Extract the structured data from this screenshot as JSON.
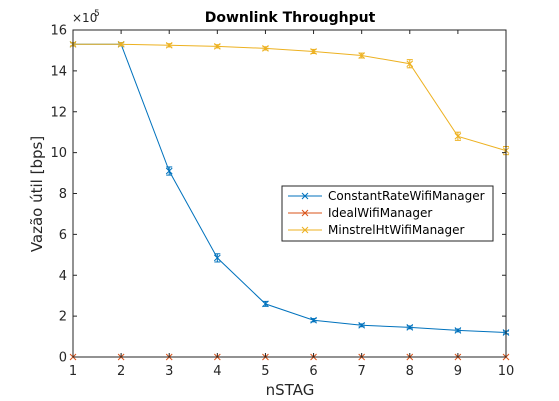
{
  "chart_data": {
    "type": "line",
    "title": "Downlink Throughput",
    "xlabel": "nSTAG",
    "ylabel": "Vazão útil [bps]",
    "y_multiplier_base": "×10",
    "y_multiplier_exp": "5",
    "x": [
      1,
      2,
      3,
      4,
      5,
      6,
      7,
      8,
      9,
      10
    ],
    "x_tick_labels": [
      "1",
      "2",
      "3",
      "4",
      "5",
      "6",
      "7",
      "8",
      "9",
      "10"
    ],
    "y_tick_labels": [
      "0",
      "2",
      "4",
      "6",
      "8",
      "10",
      "12",
      "14",
      "16"
    ],
    "xlim": [
      1,
      10
    ],
    "ylim": [
      0,
      16
    ],
    "grid": false,
    "legend_position": "center-right",
    "series": [
      {
        "name": "ConstantRateWifiManager",
        "color": "#0072BD",
        "marker": "x",
        "values": [
          15.3,
          15.3,
          9.1,
          4.85,
          2.6,
          1.8,
          1.55,
          1.45,
          1.3,
          1.2
        ],
        "errors": [
          0.08,
          0.08,
          0.2,
          0.2,
          0.12,
          0.08,
          0.07,
          0.07,
          0.07,
          0.07
        ]
      },
      {
        "name": "IdealWifiManager",
        "color": "#D95319",
        "marker": "x",
        "values": [
          0,
          0,
          0,
          0,
          0,
          0,
          0,
          0,
          0,
          0
        ],
        "errors": [
          0,
          0,
          0,
          0,
          0,
          0,
          0,
          0,
          0,
          0
        ]
      },
      {
        "name": "MinstrelHtWifiManager",
        "color": "#EDB120",
        "marker": "x",
        "values": [
          15.3,
          15.3,
          15.25,
          15.2,
          15.1,
          14.95,
          14.75,
          14.35,
          10.8,
          10.1
        ],
        "errors": [
          0.08,
          0.08,
          0.08,
          0.08,
          0.08,
          0.1,
          0.12,
          0.2,
          0.2,
          0.2
        ]
      }
    ]
  }
}
